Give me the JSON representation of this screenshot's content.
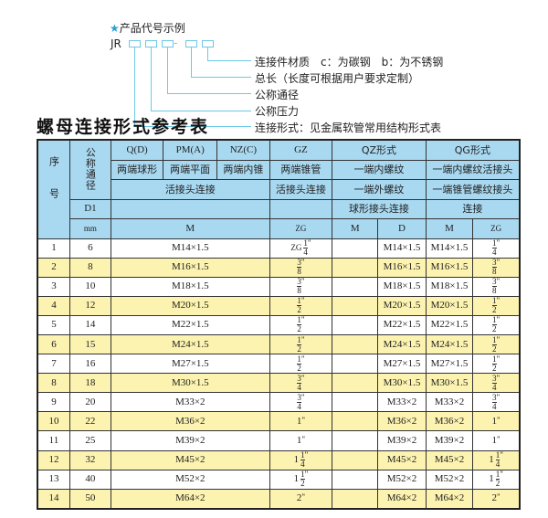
{
  "diagram": {
    "heading": "产品代号示例",
    "prefix": "JR",
    "separator": "-",
    "labels": [
      "连接件材质　c：为碳钢　b：为不锈钢",
      "总长（长度可根据用户要求定制）",
      "公称通径",
      "公称压力",
      "连接形式：见金属软管常用结构形式表"
    ],
    "accent": "#6cc8e6"
  },
  "table_title": "螺母连接形式参考表",
  "header": {
    "seq": "序号",
    "dn": "公称通径",
    "row1": [
      "Q(D)",
      "PM(A)",
      "NZ(C)",
      "GZ",
      "QZ形式",
      "QG形式"
    ],
    "row2": [
      "两端球形",
      "两端平面",
      "两端内锥",
      "两端锥管",
      "一端内螺纹",
      "一端内螺纹活接头"
    ],
    "row3": [
      "活接头连接",
      "活接头连接",
      "一端外螺纹",
      "一端锥管螺纹接头"
    ],
    "row4": [
      "D1",
      "",
      "",
      "球形接头连接",
      "连接"
    ],
    "row5": [
      "mm",
      "M",
      "ZG",
      "M",
      "D",
      "M",
      "ZG"
    ],
    "color": "#a9d9f1"
  },
  "rows": [
    {
      "no": "1",
      "d1": "6",
      "m": "M14×1.5",
      "zg": {
        "pre": "ZG",
        "num": "1",
        "den": "4"
      },
      "qz_m": "",
      "qz_d": "M14×1.5",
      "qg_m": "M14×1.5",
      "qg_zg": {
        "pre": "",
        "num": "1",
        "den": "4"
      }
    },
    {
      "no": "2",
      "d1": "8",
      "m": "M16×1.5",
      "zg": {
        "pre": "",
        "num": "3",
        "den": "8"
      },
      "qz_m": "",
      "qz_d": "M16×1.5",
      "qg_m": "M16×1.5",
      "qg_zg": {
        "pre": "",
        "num": "3",
        "den": "8"
      }
    },
    {
      "no": "3",
      "d1": "10",
      "m": "M18×1.5",
      "zg": {
        "pre": "",
        "num": "3",
        "den": "8"
      },
      "qz_m": "",
      "qz_d": "M18×1.5",
      "qg_m": "M18×1.5",
      "qg_zg": {
        "pre": "",
        "num": "3",
        "den": "8"
      }
    },
    {
      "no": "4",
      "d1": "12",
      "m": "M20×1.5",
      "zg": {
        "pre": "",
        "num": "1",
        "den": "2"
      },
      "qz_m": "",
      "qz_d": "M20×1.5",
      "qg_m": "M20×1.5",
      "qg_zg": {
        "pre": "",
        "num": "1",
        "den": "2"
      }
    },
    {
      "no": "5",
      "d1": "14",
      "m": "M22×1.5",
      "zg": {
        "pre": "",
        "num": "1",
        "den": "2"
      },
      "qz_m": "",
      "qz_d": "M22×1.5",
      "qg_m": "M22×1.5",
      "qg_zg": {
        "pre": "",
        "num": "1",
        "den": "2"
      }
    },
    {
      "no": "6",
      "d1": "15",
      "m": "M24×1.5",
      "zg": {
        "pre": "",
        "num": "1",
        "den": "2"
      },
      "qz_m": "",
      "qz_d": "M24×1.5",
      "qg_m": "M24×1.5",
      "qg_zg": {
        "pre": "",
        "num": "1",
        "den": "2"
      }
    },
    {
      "no": "7",
      "d1": "16",
      "m": "M27×1.5",
      "zg": {
        "pre": "",
        "num": "1",
        "den": "2"
      },
      "qz_m": "",
      "qz_d": "M27×1.5",
      "qg_m": "M27×1.5",
      "qg_zg": {
        "pre": "",
        "num": "1",
        "den": "2"
      }
    },
    {
      "no": "8",
      "d1": "18",
      "m": "M30×1.5",
      "zg": {
        "pre": "",
        "num": "3",
        "den": "4"
      },
      "qz_m": "",
      "qz_d": "M30×1.5",
      "qg_m": "M30×1.5",
      "qg_zg": {
        "pre": "",
        "num": "3",
        "den": "4"
      }
    },
    {
      "no": "9",
      "d1": "20",
      "m": "M33×2",
      "zg": {
        "pre": "",
        "num": "3",
        "den": "4"
      },
      "qz_m": "",
      "qz_d": "M33×2",
      "qg_m": "M33×2",
      "qg_zg": {
        "pre": "",
        "num": "3",
        "den": "4"
      }
    },
    {
      "no": "10",
      "d1": "22",
      "m": "M36×2",
      "zg": {
        "pre": "1",
        "num": "",
        "den": ""
      },
      "qz_m": "",
      "qz_d": "M36×2",
      "qg_m": "M36×2",
      "qg_zg": {
        "pre": "1",
        "num": "",
        "den": ""
      }
    },
    {
      "no": "11",
      "d1": "25",
      "m": "M39×2",
      "zg": {
        "pre": "1",
        "num": "",
        "den": ""
      },
      "qz_m": "",
      "qz_d": "M39×2",
      "qg_m": "M39×2",
      "qg_zg": {
        "pre": "1",
        "num": "",
        "den": ""
      }
    },
    {
      "no": "12",
      "d1": "32",
      "m": "M45×2",
      "zg": {
        "pre": "1",
        "num": "1",
        "den": "4"
      },
      "qz_m": "",
      "qz_d": "M45×2",
      "qg_m": "M45×2",
      "qg_zg": {
        "pre": "1",
        "num": "1",
        "den": "4"
      }
    },
    {
      "no": "13",
      "d1": "40",
      "m": "M52×2",
      "zg": {
        "pre": "1",
        "num": "1",
        "den": "2"
      },
      "qz_m": "",
      "qz_d": "M52×2",
      "qg_m": "M52×2",
      "qg_zg": {
        "pre": "1",
        "num": "1",
        "den": "2"
      }
    },
    {
      "no": "14",
      "d1": "50",
      "m": "M64×2",
      "zg": {
        "pre": "2",
        "num": "",
        "den": ""
      },
      "qz_m": "",
      "qz_d": "M64×2",
      "qg_m": "M64×2",
      "qg_zg": {
        "pre": "2",
        "num": "",
        "den": ""
      }
    }
  ],
  "inch_mark": "\"",
  "row_alt_color": "#fcf3b0"
}
